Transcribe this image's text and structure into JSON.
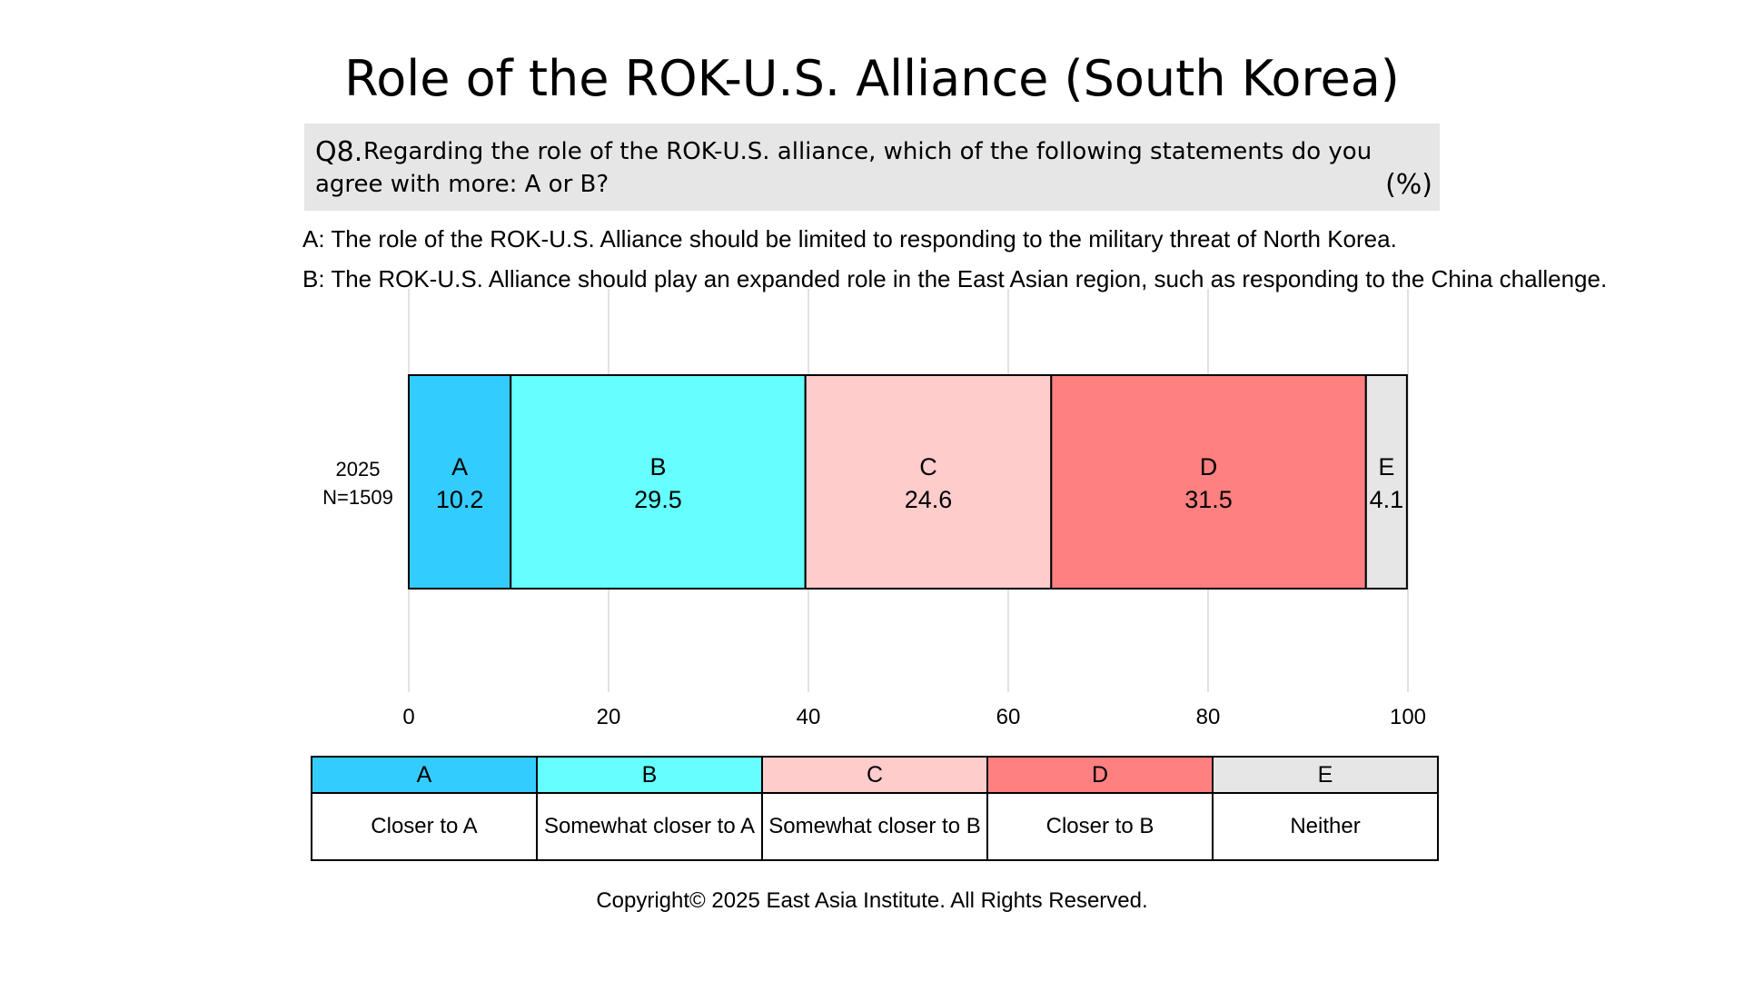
{
  "title": "Role of the ROK-U.S. Alliance (South Korea)",
  "question": {
    "prefix": "Q8.",
    "line1": "Regarding the role of the ROK-U.S. alliance, which of the following statements do you",
    "line2": "agree with more: A or B?",
    "unit": "(%)"
  },
  "statements": {
    "a": "A: The role of the ROK-U.S. Alliance should be limited to responding to the military threat of North Korea.",
    "b": "B: The ROK-U.S. Alliance should play an expanded role in the East Asian region, such as responding to the China challenge."
  },
  "chart_data": {
    "type": "bar",
    "orientation": "horizontal",
    "stacked": true,
    "categories": [
      "2025\nN=1509"
    ],
    "category_lines": [
      "2025",
      "N=1509"
    ],
    "series": [
      {
        "name": "A",
        "values": [
          10.2
        ],
        "color": "#33ccff"
      },
      {
        "name": "B",
        "values": [
          29.5
        ],
        "color": "#66ffff"
      },
      {
        "name": "C",
        "values": [
          24.6
        ],
        "color": "#ffcccc"
      },
      {
        "name": "D",
        "values": [
          31.5
        ],
        "color": "#ff8080"
      },
      {
        "name": "E",
        "values": [
          4.1
        ],
        "color": "#e6e6e6"
      }
    ],
    "xlim": [
      0,
      100
    ],
    "xticks": [
      "0",
      "20",
      "40",
      "60",
      "80",
      "100"
    ],
    "grid": true,
    "xlabel": "",
    "ylabel": ""
  },
  "legend": {
    "keys": [
      "A",
      "B",
      "C",
      "D",
      "E"
    ],
    "labels": [
      "Closer to A",
      "Somewhat closer to A",
      "Somewhat closer to B",
      "Closer to B",
      "Neither"
    ],
    "colors": [
      "#33ccff",
      "#66ffff",
      "#ffcccc",
      "#ff8080",
      "#e6e6e6"
    ]
  },
  "copyright": "Copyright© 2025 East Asia Institute. All Rights Reserved."
}
